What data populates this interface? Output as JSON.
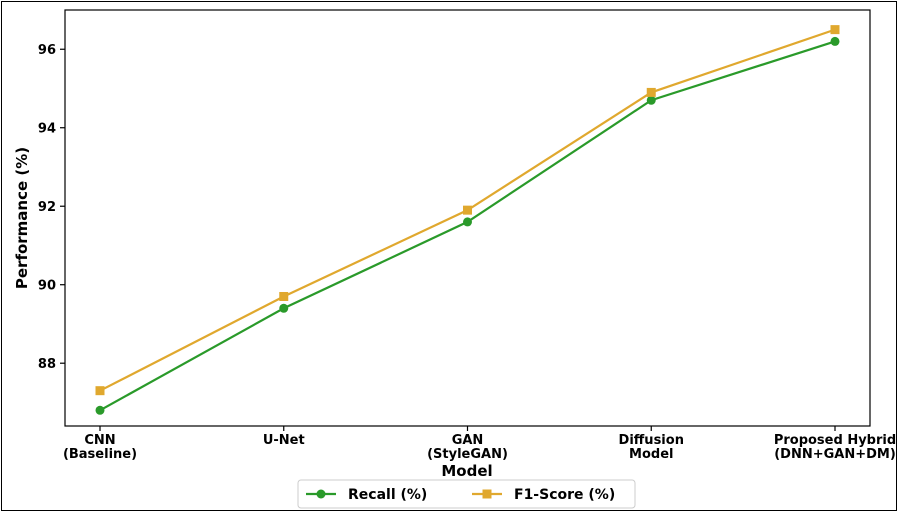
{
  "chart_data": {
    "type": "line",
    "title": "",
    "xlabel": "Model",
    "ylabel": "Performance (%)",
    "categories": [
      [
        "CNN",
        "(Baseline)"
      ],
      [
        "U-Net"
      ],
      [
        "GAN",
        "(StyleGAN)"
      ],
      [
        "Diffusion",
        "Model"
      ],
      [
        "Proposed Hybrid",
        "(DNN+GAN+DM)"
      ]
    ],
    "ylim": [
      86.4,
      97.0
    ],
    "yticks": [
      88,
      90,
      92,
      94,
      96
    ],
    "grid": false,
    "legend_position": "bottom-center",
    "series": [
      {
        "name": "Recall (%)",
        "values": [
          86.8,
          89.4,
          91.6,
          94.7,
          96.2
        ],
        "color": "#2a9a2a",
        "marker": "circle"
      },
      {
        "name": "F1-Score (%)",
        "values": [
          87.3,
          89.7,
          91.9,
          94.9,
          96.5
        ],
        "color": "#e0a82e",
        "marker": "square"
      }
    ]
  }
}
